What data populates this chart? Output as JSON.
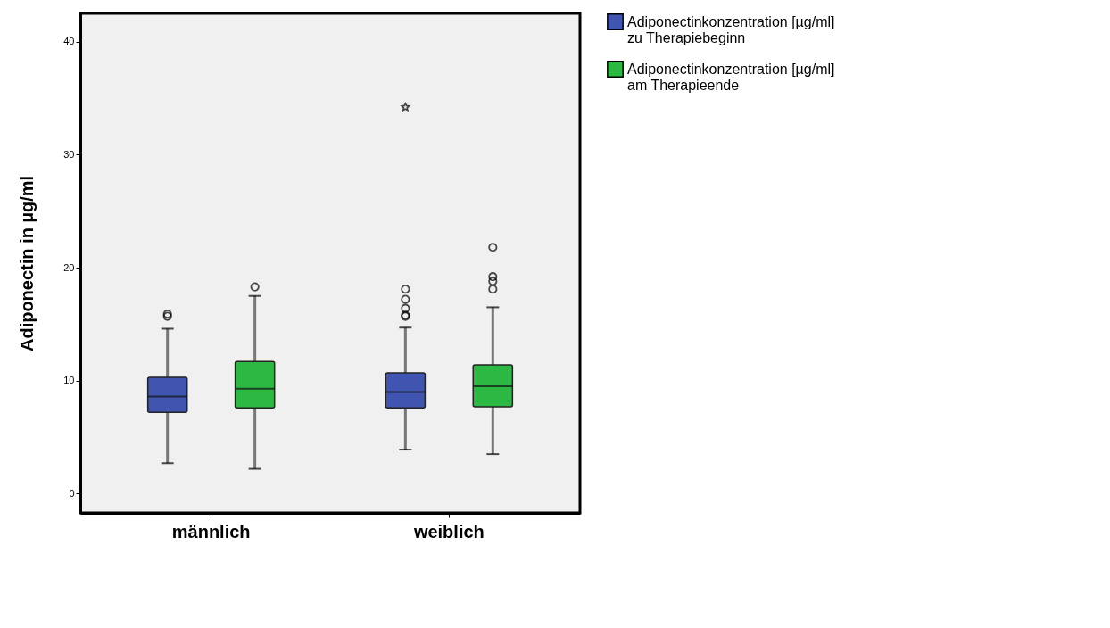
{
  "chart_data": {
    "type": "box",
    "ylabel": "Adiponectin in µg/ml",
    "categories": [
      "männlich",
      "weiblich"
    ],
    "series": [
      {
        "name": "Adiponectinkonzentration [µg/ml]\nzu Therapiebeginn",
        "color": "#3f55b0",
        "boxes": [
          {
            "low": 2.7,
            "q1": 7.2,
            "median": 8.6,
            "q3": 10.3,
            "high": 14.6,
            "outliers": [
              15.7,
              15.9
            ]
          },
          {
            "low": 3.9,
            "q1": 7.6,
            "median": 9.0,
            "q3": 10.7,
            "high": 14.7,
            "outliers": [
              15.7,
              15.8,
              16.4,
              17.2,
              18.1,
              34.2
            ]
          }
        ]
      },
      {
        "name": "Adiponectinkonzentration [µg/ml]\nam Therapieende",
        "color": "#2db843",
        "boxes": [
          {
            "low": 2.2,
            "q1": 7.6,
            "median": 9.3,
            "q3": 11.7,
            "high": 17.5,
            "outliers": [
              18.3
            ]
          },
          {
            "low": 3.5,
            "q1": 7.7,
            "median": 9.5,
            "q3": 11.4,
            "high": 16.5,
            "outliers": [
              18.1,
              18.8,
              19.2,
              21.8
            ]
          }
        ]
      }
    ],
    "ylim": [
      -1.7,
      42.5
    ],
    "yticks": [
      0,
      10,
      20,
      30,
      40
    ],
    "grid": false,
    "legend": "top right"
  }
}
